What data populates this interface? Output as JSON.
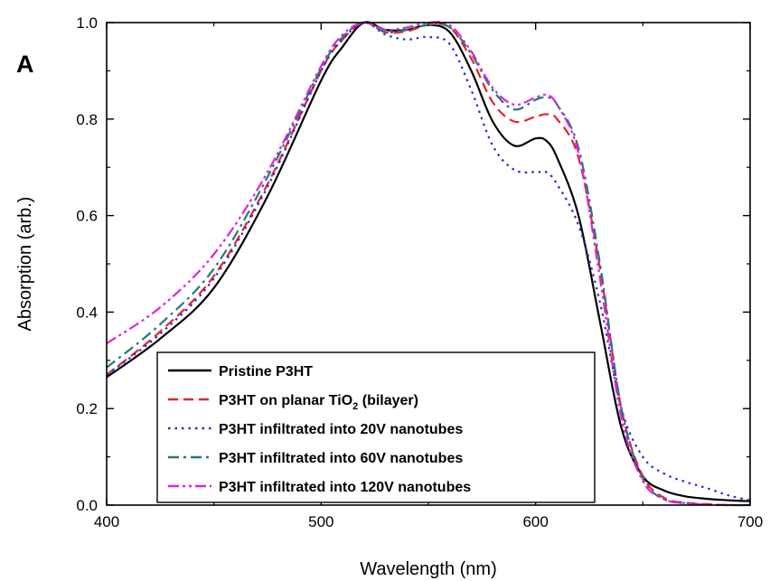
{
  "chart_data": {
    "type": "line",
    "panel_label": "A",
    "title": "",
    "xlabel": "Wavelength (nm)",
    "ylabel": "Absorption (arb.)",
    "xlim": [
      400,
      700
    ],
    "ylim": [
      0,
      1.0
    ],
    "x_ticks": [
      400,
      500,
      600,
      700
    ],
    "x_tick_labels": [
      "400",
      "500",
      "600",
      "700"
    ],
    "y_ticks": [
      0,
      0.2,
      0.4,
      0.6,
      0.8,
      1.0
    ],
    "y_tick_labels": [
      "0.0",
      "0.2",
      "0.4",
      "0.6",
      "0.8",
      "1.0"
    ],
    "grid": false,
    "legend_position": "bottom-left",
    "series": [
      {
        "name": "Pristine P3HT",
        "color": "#000000",
        "style": "solid",
        "x": [
          400,
          425,
          450,
          475,
          500,
          510,
          520,
          530,
          540,
          550,
          560,
          570,
          580,
          590,
          600,
          605,
          610,
          620,
          630,
          640,
          650,
          660,
          670,
          680,
          690,
          700
        ],
        "y": [
          0.265,
          0.345,
          0.45,
          0.64,
          0.88,
          0.95,
          1.0,
          0.985,
          0.985,
          0.995,
          0.98,
          0.9,
          0.795,
          0.745,
          0.76,
          0.755,
          0.72,
          0.6,
          0.38,
          0.16,
          0.06,
          0.03,
          0.018,
          0.013,
          0.01,
          0.008
        ]
      },
      {
        "name": "P3HT on planar TiO2 (bilayer)",
        "color": "#e8232a",
        "style": "dashed",
        "x": [
          400,
          425,
          450,
          475,
          500,
          510,
          520,
          530,
          540,
          550,
          560,
          570,
          580,
          590,
          600,
          605,
          610,
          620,
          630,
          640,
          650,
          660,
          670,
          680,
          690,
          700
        ],
        "y": [
          0.27,
          0.36,
          0.475,
          0.665,
          0.9,
          0.965,
          1.0,
          0.98,
          0.982,
          0.995,
          0.99,
          0.925,
          0.835,
          0.795,
          0.805,
          0.81,
          0.8,
          0.72,
          0.49,
          0.2,
          0.06,
          0.015,
          0.005,
          0.002,
          0.0,
          0.0
        ]
      },
      {
        "name": "P3HT infiltrated into 20V nanotubes",
        "color": "#2b2bd1",
        "style": "dotted",
        "x": [
          400,
          425,
          450,
          475,
          500,
          510,
          520,
          530,
          540,
          550,
          560,
          570,
          580,
          590,
          600,
          605,
          610,
          620,
          630,
          640,
          650,
          660,
          670,
          680,
          690,
          700
        ],
        "y": [
          0.27,
          0.355,
          0.47,
          0.66,
          0.9,
          0.965,
          1.0,
          0.975,
          0.965,
          0.97,
          0.955,
          0.86,
          0.745,
          0.695,
          0.69,
          0.69,
          0.665,
          0.58,
          0.42,
          0.2,
          0.1,
          0.065,
          0.048,
          0.035,
          0.02,
          0.01
        ]
      },
      {
        "name": "P3HT infiltrated into 60V nanotubes",
        "color": "#1f7a7a",
        "style": "dashdot",
        "x": [
          400,
          425,
          450,
          475,
          500,
          510,
          520,
          530,
          540,
          550,
          560,
          570,
          580,
          590,
          600,
          605,
          610,
          620,
          630,
          640,
          650,
          660,
          670,
          680,
          690,
          700
        ],
        "y": [
          0.285,
          0.375,
          0.49,
          0.68,
          0.905,
          0.97,
          1.0,
          0.98,
          0.985,
          0.995,
          0.99,
          0.935,
          0.86,
          0.82,
          0.84,
          0.845,
          0.83,
          0.74,
          0.5,
          0.2,
          0.055,
          0.012,
          0.004,
          0.001,
          0.0,
          0.0
        ]
      },
      {
        "name": "P3HT infiltrated into 120V nanotubes",
        "color": "#e020e0",
        "style": "dashdotdot",
        "x": [
          400,
          425,
          450,
          475,
          500,
          510,
          520,
          530,
          540,
          550,
          560,
          570,
          580,
          590,
          600,
          605,
          610,
          620,
          630,
          640,
          650,
          660,
          670,
          680,
          690,
          700
        ],
        "y": [
          0.335,
          0.41,
          0.52,
          0.69,
          0.91,
          0.975,
          1.0,
          0.985,
          0.99,
          1.0,
          0.995,
          0.94,
          0.865,
          0.83,
          0.845,
          0.85,
          0.83,
          0.73,
          0.47,
          0.18,
          0.05,
          0.012,
          0.004,
          0.001,
          0.0,
          0.0
        ]
      }
    ],
    "legend": {
      "entries": [
        {
          "text": "Pristine P3HT"
        },
        {
          "text": "P3HT on planar TiO",
          "sub": "2",
          "suffix": " (bilayer)"
        },
        {
          "text": "P3HT infiltrated into 20V nanotubes"
        },
        {
          "text": "P3HT infiltrated into 60V nanotubes"
        },
        {
          "text": "P3HT infiltrated into 120V nanotubes"
        }
      ]
    }
  }
}
